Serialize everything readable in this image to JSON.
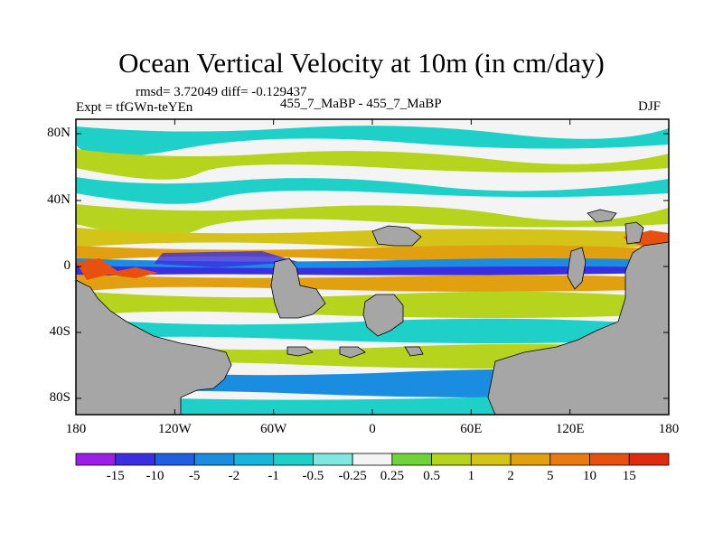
{
  "title": "Ocean Vertical Velocity at 10m (in cm/day)",
  "stats": "rmsd= 3.72049  diff= -0.129437",
  "left_label": "Expt = tfGWn-teYEn",
  "center_label": "455_7_MaBP - 455_7_MaBP",
  "right_label": "DJF",
  "y_ticks": [
    "80N",
    "40N",
    "0",
    "40S",
    "80S"
  ],
  "x_ticks": [
    "180",
    "120W",
    "60W",
    "0",
    "60E",
    "120E",
    "180"
  ],
  "colorbar": {
    "labels": [
      "-15",
      "-10",
      "-5",
      "-2",
      "-1",
      "-0.5",
      "-0.25",
      "0.25",
      "0.5",
      "1",
      "2",
      "5",
      "10",
      "15"
    ],
    "colors": [
      "#9b1fe8",
      "#3a2ee0",
      "#1f5fe0",
      "#1b8de0",
      "#17b4dc",
      "#1fd0c8",
      "#7fe8e0",
      "#f4f4f4",
      "#6fd43c",
      "#b6d41e",
      "#d4c41a",
      "#e0a010",
      "#e87a10",
      "#e85010",
      "#e02a10"
    ]
  },
  "colors": {
    "land": "#a6a6a6",
    "ocean_light": "#f4f4f4",
    "ocean_green": "#b6d41e",
    "ocean_yellow": "#d4c41a",
    "ocean_cyan": "#1fd0c8",
    "ocean_blue": "#1b8de0",
    "ocean_deep_blue": "#3a2ee0",
    "ocean_orange": "#e0a010",
    "ocean_red": "#e85010"
  }
}
